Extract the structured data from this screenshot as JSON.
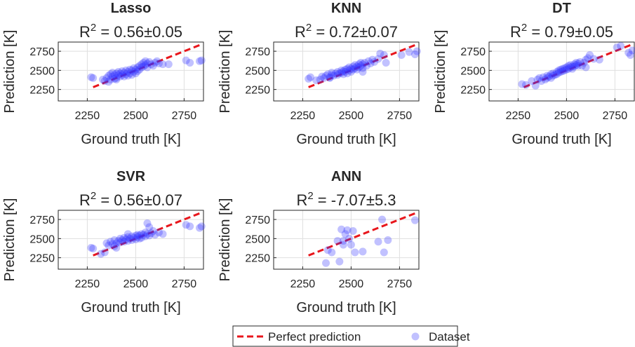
{
  "figure": {
    "legend": {
      "perfect_label": "Perfect prediction",
      "dataset_label": "Dataset",
      "perfect_color": "#e8161c",
      "dataset_color": "#3333ff"
    },
    "axis_text": {
      "xlabel": "Ground truth [K]",
      "ylabel": "Prediction [K]",
      "r2_prefix": "R",
      "r2_sup": "2"
    }
  },
  "chart_data": [
    {
      "type": "scatter",
      "title": "Lasso",
      "r2_text": " = 0.56±0.05",
      "xlabel": "Ground truth [K]",
      "ylabel": "Prediction [K]",
      "xlim": [
        2100,
        2850
      ],
      "ylim": [
        2100,
        2870
      ],
      "xticks": [
        2250,
        2500,
        2750
      ],
      "yticks": [
        2250,
        2500,
        2750
      ],
      "perfect_line": [
        [
          2280,
          2280
        ],
        [
          2840,
          2840
        ]
      ],
      "points": [
        [
          2270,
          2410
        ],
        [
          2280,
          2400
        ],
        [
          2330,
          2380
        ],
        [
          2340,
          2360
        ],
        [
          2350,
          2400
        ],
        [
          2360,
          2430
        ],
        [
          2370,
          2380
        ],
        [
          2370,
          2450
        ],
        [
          2380,
          2420
        ],
        [
          2380,
          2470
        ],
        [
          2390,
          2390
        ],
        [
          2390,
          2440
        ],
        [
          2400,
          2460
        ],
        [
          2400,
          2400
        ],
        [
          2410,
          2440
        ],
        [
          2410,
          2480
        ],
        [
          2420,
          2420
        ],
        [
          2420,
          2460
        ],
        [
          2430,
          2490
        ],
        [
          2430,
          2440
        ],
        [
          2440,
          2420
        ],
        [
          2440,
          2470
        ],
        [
          2450,
          2500
        ],
        [
          2450,
          2450
        ],
        [
          2460,
          2430
        ],
        [
          2460,
          2480
        ],
        [
          2470,
          2510
        ],
        [
          2470,
          2460
        ],
        [
          2480,
          2440
        ],
        [
          2480,
          2500
        ],
        [
          2490,
          2530
        ],
        [
          2490,
          2480
        ],
        [
          2500,
          2460
        ],
        [
          2500,
          2510
        ],
        [
          2510,
          2540
        ],
        [
          2510,
          2490
        ],
        [
          2520,
          2560
        ],
        [
          2520,
          2510
        ],
        [
          2530,
          2580
        ],
        [
          2530,
          2540
        ],
        [
          2540,
          2600
        ],
        [
          2540,
          2550
        ],
        [
          2550,
          2570
        ],
        [
          2550,
          2620
        ],
        [
          2560,
          2590
        ],
        [
          2560,
          2540
        ],
        [
          2570,
          2610
        ],
        [
          2580,
          2580
        ],
        [
          2590,
          2560
        ],
        [
          2600,
          2600
        ],
        [
          2610,
          2620
        ],
        [
          2620,
          2590
        ],
        [
          2640,
          2580
        ],
        [
          2670,
          2580
        ],
        [
          2760,
          2630
        ],
        [
          2780,
          2600
        ],
        [
          2830,
          2620
        ],
        [
          2840,
          2630
        ],
        [
          2360,
          2350
        ],
        [
          2400,
          2380
        ]
      ]
    },
    {
      "type": "scatter",
      "title": "KNN",
      "r2_text": " = 0.72±0.07",
      "xlabel": "Ground truth [K]",
      "ylabel": "Prediction [K]",
      "xlim": [
        2100,
        2850
      ],
      "ylim": [
        2100,
        2870
      ],
      "xticks": [
        2250,
        2500,
        2750
      ],
      "yticks": [
        2250,
        2500,
        2750
      ],
      "perfect_line": [
        [
          2280,
          2280
        ],
        [
          2840,
          2840
        ]
      ],
      "points": [
        [
          2280,
          2390
        ],
        [
          2290,
          2410
        ],
        [
          2320,
          2370
        ],
        [
          2340,
          2380
        ],
        [
          2350,
          2420
        ],
        [
          2360,
          2400
        ],
        [
          2370,
          2430
        ],
        [
          2380,
          2450
        ],
        [
          2390,
          2410
        ],
        [
          2400,
          2440
        ],
        [
          2400,
          2470
        ],
        [
          2410,
          2430
        ],
        [
          2420,
          2460
        ],
        [
          2430,
          2440
        ],
        [
          2430,
          2480
        ],
        [
          2440,
          2460
        ],
        [
          2450,
          2500
        ],
        [
          2450,
          2470
        ],
        [
          2460,
          2450
        ],
        [
          2460,
          2490
        ],
        [
          2470,
          2510
        ],
        [
          2470,
          2480
        ],
        [
          2480,
          2460
        ],
        [
          2480,
          2520
        ],
        [
          2490,
          2500
        ],
        [
          2490,
          2540
        ],
        [
          2500,
          2520
        ],
        [
          2500,
          2480
        ],
        [
          2510,
          2550
        ],
        [
          2510,
          2510
        ],
        [
          2520,
          2530
        ],
        [
          2520,
          2570
        ],
        [
          2530,
          2550
        ],
        [
          2530,
          2510
        ],
        [
          2540,
          2580
        ],
        [
          2540,
          2540
        ],
        [
          2550,
          2600
        ],
        [
          2550,
          2560
        ],
        [
          2560,
          2580
        ],
        [
          2560,
          2530
        ],
        [
          2570,
          2600
        ],
        [
          2580,
          2560
        ],
        [
          2590,
          2620
        ],
        [
          2600,
          2590
        ],
        [
          2610,
          2640
        ],
        [
          2620,
          2610
        ],
        [
          2640,
          2650
        ],
        [
          2650,
          2720
        ],
        [
          2670,
          2700
        ],
        [
          2680,
          2600
        ],
        [
          2760,
          2700
        ],
        [
          2800,
          2740
        ],
        [
          2830,
          2710
        ],
        [
          2840,
          2750
        ],
        [
          2390,
          2400
        ],
        [
          2560,
          2480
        ]
      ]
    },
    {
      "type": "scatter",
      "title": "DT",
      "r2_text": " = 0.79±0.05",
      "xlabel": "Ground truth [K]",
      "ylabel": "Prediction [K]",
      "xlim": [
        2100,
        2850
      ],
      "ylim": [
        2100,
        2870
      ],
      "xticks": [
        2250,
        2500,
        2750
      ],
      "yticks": [
        2250,
        2500,
        2750
      ],
      "perfect_line": [
        [
          2280,
          2280
        ],
        [
          2840,
          2840
        ]
      ],
      "points": [
        [
          2270,
          2320
        ],
        [
          2290,
          2310
        ],
        [
          2320,
          2360
        ],
        [
          2340,
          2300
        ],
        [
          2350,
          2380
        ],
        [
          2360,
          2400
        ],
        [
          2370,
          2360
        ],
        [
          2380,
          2410
        ],
        [
          2390,
          2380
        ],
        [
          2400,
          2430
        ],
        [
          2400,
          2400
        ],
        [
          2410,
          2420
        ],
        [
          2420,
          2450
        ],
        [
          2430,
          2430
        ],
        [
          2430,
          2460
        ],
        [
          2440,
          2440
        ],
        [
          2450,
          2480
        ],
        [
          2450,
          2450
        ],
        [
          2460,
          2470
        ],
        [
          2460,
          2500
        ],
        [
          2470,
          2480
        ],
        [
          2470,
          2510
        ],
        [
          2480,
          2490
        ],
        [
          2480,
          2520
        ],
        [
          2490,
          2500
        ],
        [
          2490,
          2530
        ],
        [
          2500,
          2510
        ],
        [
          2500,
          2540
        ],
        [
          2510,
          2520
        ],
        [
          2510,
          2560
        ],
        [
          2520,
          2540
        ],
        [
          2520,
          2570
        ],
        [
          2530,
          2550
        ],
        [
          2530,
          2520
        ],
        [
          2540,
          2580
        ],
        [
          2540,
          2550
        ],
        [
          2550,
          2570
        ],
        [
          2550,
          2600
        ],
        [
          2560,
          2590
        ],
        [
          2560,
          2560
        ],
        [
          2570,
          2610
        ],
        [
          2580,
          2560
        ],
        [
          2590,
          2600
        ],
        [
          2600,
          2640
        ],
        [
          2610,
          2660
        ],
        [
          2620,
          2700
        ],
        [
          2640,
          2650
        ],
        [
          2670,
          2640
        ],
        [
          2760,
          2800
        ],
        [
          2780,
          2820
        ],
        [
          2820,
          2730
        ],
        [
          2840,
          2760
        ],
        [
          2830,
          2700
        ],
        [
          2420,
          2400
        ],
        [
          2600,
          2540
        ]
      ]
    },
    {
      "type": "scatter",
      "title": "SVR",
      "r2_text": " = 0.56±0.07",
      "xlabel": "Ground truth [K]",
      "ylabel": "Prediction [K]",
      "xlim": [
        2100,
        2850
      ],
      "ylim": [
        2100,
        2870
      ],
      "xticks": [
        2250,
        2500,
        2750
      ],
      "yticks": [
        2250,
        2500,
        2750
      ],
      "perfect_line": [
        [
          2280,
          2280
        ],
        [
          2840,
          2840
        ]
      ],
      "points": [
        [
          2270,
          2380
        ],
        [
          2280,
          2370
        ],
        [
          2320,
          2300
        ],
        [
          2340,
          2320
        ],
        [
          2350,
          2440
        ],
        [
          2360,
          2410
        ],
        [
          2370,
          2460
        ],
        [
          2380,
          2430
        ],
        [
          2390,
          2480
        ],
        [
          2390,
          2400
        ],
        [
          2400,
          2440
        ],
        [
          2410,
          2470
        ],
        [
          2420,
          2500
        ],
        [
          2420,
          2450
        ],
        [
          2430,
          2480
        ],
        [
          2440,
          2510
        ],
        [
          2440,
          2460
        ],
        [
          2450,
          2490
        ],
        [
          2460,
          2520
        ],
        [
          2460,
          2470
        ],
        [
          2470,
          2500
        ],
        [
          2480,
          2530
        ],
        [
          2480,
          2480
        ],
        [
          2490,
          2510
        ],
        [
          2500,
          2540
        ],
        [
          2500,
          2490
        ],
        [
          2510,
          2520
        ],
        [
          2510,
          2550
        ],
        [
          2520,
          2500
        ],
        [
          2520,
          2540
        ],
        [
          2530,
          2560
        ],
        [
          2530,
          2510
        ],
        [
          2540,
          2550
        ],
        [
          2550,
          2580
        ],
        [
          2550,
          2530
        ],
        [
          2560,
          2560
        ],
        [
          2560,
          2700
        ],
        [
          2570,
          2650
        ],
        [
          2570,
          2540
        ],
        [
          2580,
          2570
        ],
        [
          2590,
          2600
        ],
        [
          2600,
          2550
        ],
        [
          2620,
          2580
        ],
        [
          2640,
          2560
        ],
        [
          2760,
          2680
        ],
        [
          2780,
          2660
        ],
        [
          2830,
          2640
        ],
        [
          2840,
          2660
        ],
        [
          2400,
          2380
        ],
        [
          2460,
          2560
        ]
      ]
    },
    {
      "type": "scatter",
      "title": "ANN",
      "r2_text": " = -7.07±5.3",
      "xlabel": "Ground truth [K]",
      "ylabel": "Prediction [K]",
      "xlim": [
        2100,
        2850
      ],
      "ylim": [
        2100,
        2870
      ],
      "xticks": [
        2250,
        2500,
        2750
      ],
      "yticks": [
        2250,
        2500,
        2750
      ],
      "perfect_line": [
        [
          2280,
          2280
        ],
        [
          2840,
          2840
        ]
      ],
      "points": [
        [
          2370,
          2180
        ],
        [
          2380,
          2350
        ],
        [
          2400,
          2320
        ],
        [
          2430,
          2470
        ],
        [
          2440,
          2200
        ],
        [
          2450,
          2620
        ],
        [
          2460,
          2470
        ],
        [
          2470,
          2560
        ],
        [
          2480,
          2610
        ],
        [
          2490,
          2500
        ],
        [
          2500,
          2420
        ],
        [
          2510,
          2600
        ],
        [
          2520,
          2320
        ],
        [
          2560,
          2330
        ],
        [
          2640,
          2460
        ],
        [
          2660,
          2750
        ],
        [
          2670,
          2320
        ],
        [
          2690,
          2480
        ],
        [
          2830,
          2740
        ],
        [
          2460,
          2420
        ]
      ]
    }
  ]
}
